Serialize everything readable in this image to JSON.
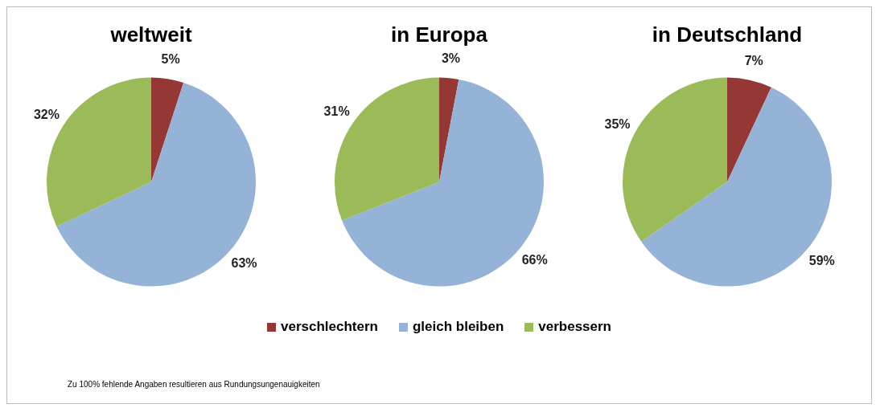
{
  "chart_data": [
    {
      "type": "pie",
      "title": "weltweit",
      "categories": [
        "verschlechtern",
        "gleich bleiben",
        "verbessern"
      ],
      "values": [
        5,
        63,
        32
      ],
      "colors": [
        "#953735",
        "#95b3d7",
        "#9bbb59"
      ],
      "value_labels": [
        "5%",
        "63%",
        "32%"
      ],
      "legend": "bottom",
      "annotations": [
        "Zu 100% fehlende Angaben resultieren aus Rundungsungenauigkeiten"
      ]
    },
    {
      "type": "pie",
      "title": "in Europa",
      "values": [
        3,
        66,
        31
      ],
      "colors": [
        "#953735",
        "#95b3d7",
        "#9bbb59"
      ],
      "value_labels": [
        "3%",
        "66%",
        "31%"
      ]
    },
    {
      "type": "pie",
      "title": "in Deutschland",
      "values": [
        7,
        59,
        35
      ],
      "colors": [
        "#953735",
        "#95b3d7",
        "#9bbb59"
      ],
      "value_labels": [
        "7%",
        "59%",
        "35%"
      ]
    }
  ]
}
